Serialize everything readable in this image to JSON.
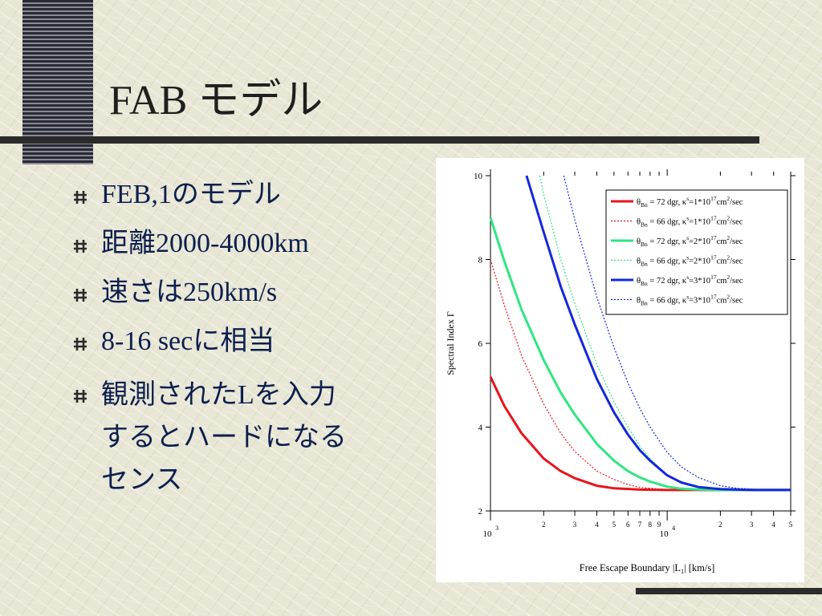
{
  "slide": {
    "title": "FAB モデル",
    "bullets": [
      {
        "text": "FEB,1のモデル"
      },
      {
        "text": "距離2000-4000km"
      },
      {
        "text": "速さは250km/s"
      },
      {
        "text": "8-16 secに相当"
      },
      {
        "text": "観測されたLを入力するとハードになるセンス",
        "lines": [
          "観測されたLを入力",
          "するとハードになる",
          "センス"
        ]
      }
    ],
    "bullet_icon": "hash-bullet-icon"
  },
  "chart_data": {
    "type": "line",
    "xscale": "log",
    "xlabel": "Free Escape Boundary  |L",
    "xlabel_sub": "1",
    "xlabel_tail": "|  [km/s]",
    "ylabel": "Spectral Index  Γ",
    "xlim": [
      1000,
      50000
    ],
    "ylim": [
      2,
      10
    ],
    "yticks": [
      2,
      4,
      6,
      8,
      10
    ],
    "x_major_ticks": [
      {
        "value": 1000,
        "base": "10",
        "exp": "3"
      },
      {
        "value": 10000,
        "base": "10",
        "exp": "4"
      }
    ],
    "x_minor_ticks": [
      {
        "value": 2000,
        "label": "2"
      },
      {
        "value": 3000,
        "label": "3"
      },
      {
        "value": 4000,
        "label": "4"
      },
      {
        "value": 5000,
        "label": "5"
      },
      {
        "value": 6000,
        "label": "6"
      },
      {
        "value": 7000,
        "label": "7"
      },
      {
        "value": 8000,
        "label": "8"
      },
      {
        "value": 9000,
        "label": "9"
      },
      {
        "value": 20000,
        "label": "2"
      },
      {
        "value": 30000,
        "label": "3"
      },
      {
        "value": 40000,
        "label": "4"
      },
      {
        "value": 50000,
        "label": "5"
      }
    ],
    "series": [
      {
        "label": {
          "theta": "θ",
          "sub": "Bn",
          "mid": " = 72 dgr, κ",
          "sup": "s",
          "mid2": "=1*10",
          "sup2": "17",
          "tail": "cm",
          "sup3": "2",
          "end": "/sec"
        },
        "color": "#e8141c",
        "style": "solid",
        "width": 3,
        "x": [
          1000,
          1200,
          1500,
          2000,
          2500,
          3000,
          4000,
          5000,
          7000,
          10000,
          20000,
          50000
        ],
        "y": [
          5.2,
          4.5,
          3.85,
          3.25,
          2.95,
          2.78,
          2.6,
          2.54,
          2.51,
          2.5,
          2.5,
          2.5
        ]
      },
      {
        "label": {
          "theta": "θ",
          "sub": "Bn",
          "mid": " = 66 dgr, κ",
          "sup": "s",
          "mid2": "=1*10",
          "sup2": "17",
          "tail": "cm",
          "sup3": "2",
          "end": "/sec"
        },
        "color": "#e8141c",
        "style": "dotted",
        "width": 1.2,
        "x": [
          1000,
          1200,
          1500,
          2000,
          2500,
          3000,
          4000,
          5000,
          6000,
          7000,
          10000,
          20000,
          50000
        ],
        "y": [
          8.0,
          6.9,
          5.7,
          4.55,
          3.85,
          3.42,
          2.95,
          2.75,
          2.63,
          2.56,
          2.51,
          2.5,
          2.5
        ]
      },
      {
        "label": {
          "theta": "θ",
          "sub": "Bn",
          "mid": " = 72 dgr, κ",
          "sup": "s",
          "mid2": "=2*10",
          "sup2": "17",
          "tail": "cm",
          "sup3": "2",
          "end": "/sec"
        },
        "color": "#2ee680",
        "style": "solid",
        "width": 3,
        "x": [
          1000,
          1200,
          1500,
          2000,
          2500,
          3000,
          4000,
          5000,
          6000,
          7000,
          8000,
          10000,
          12000,
          15000,
          20000,
          50000
        ],
        "y": [
          9.0,
          7.95,
          6.8,
          5.6,
          4.82,
          4.3,
          3.6,
          3.2,
          2.95,
          2.8,
          2.7,
          2.58,
          2.53,
          2.51,
          2.5,
          2.5
        ]
      },
      {
        "label": {
          "theta": "θ",
          "sub": "Bn",
          "mid": " = 66 dgr, κ",
          "sup": "s",
          "mid2": "=2*10",
          "sup2": "17",
          "tail": "cm",
          "sup3": "2",
          "end": "/sec"
        },
        "color": "#2ee680",
        "style": "dotted",
        "width": 1.2,
        "x": [
          1900,
          2000,
          2500,
          3000,
          4000,
          5000,
          6000,
          7000,
          8000,
          10000,
          12000,
          15000,
          20000,
          30000,
          50000
        ],
        "y": [
          10.0,
          9.55,
          8.0,
          6.95,
          5.5,
          4.6,
          4.0,
          3.55,
          3.25,
          2.85,
          2.68,
          2.56,
          2.52,
          2.5,
          2.5
        ]
      },
      {
        "label": {
          "theta": "θ",
          "sub": "Bn",
          "mid": " = 72 dgr, κ",
          "sup": "s",
          "mid2": "=3*10",
          "sup2": "17",
          "tail": "cm",
          "sup3": "2",
          "end": "/sec"
        },
        "color": "#1428dc",
        "style": "solid",
        "width": 3,
        "x": [
          1600,
          2000,
          2500,
          3000,
          4000,
          5000,
          6000,
          7000,
          8000,
          10000,
          12000,
          15000,
          20000,
          30000,
          50000
        ],
        "y": [
          10.0,
          8.65,
          7.35,
          6.45,
          5.15,
          4.35,
          3.82,
          3.45,
          3.2,
          2.85,
          2.68,
          2.57,
          2.52,
          2.5,
          2.5
        ]
      },
      {
        "label": {
          "theta": "θ",
          "sub": "Bn",
          "mid": " = 66 dgr, κ",
          "sup": "s",
          "mid2": "=3*10",
          "sup2": "17",
          "tail": "cm",
          "sup3": "2",
          "end": "/sec"
        },
        "color": "#1428dc",
        "style": "dotted",
        "width": 1.2,
        "x": [
          2600,
          3000,
          4000,
          5000,
          6000,
          7000,
          8000,
          10000,
          12000,
          15000,
          20000,
          25000,
          30000,
          40000,
          50000
        ],
        "y": [
          10.0,
          8.95,
          7.1,
          5.9,
          5.05,
          4.45,
          4.0,
          3.4,
          3.05,
          2.8,
          2.6,
          2.54,
          2.52,
          2.5,
          2.5
        ]
      }
    ]
  }
}
